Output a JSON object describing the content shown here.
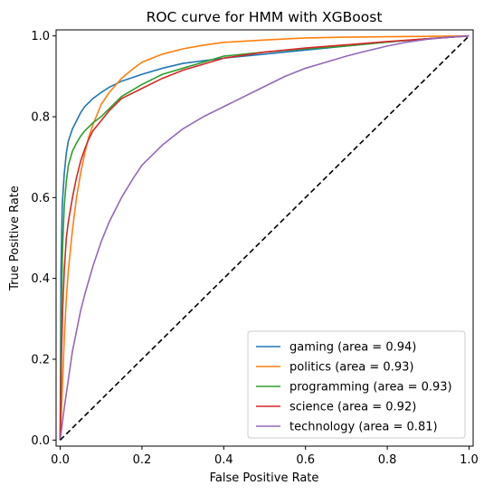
{
  "chart_data": {
    "type": "line",
    "title": "ROC curve for HMM with XGBoost",
    "xlabel": "False Positive Rate",
    "ylabel": "True Positive Rate",
    "xlim": [
      -0.01,
      1.01
    ],
    "ylim": [
      -0.015,
      1.015
    ],
    "xticks": [
      0.0,
      0.2,
      0.4,
      0.6,
      0.8,
      1.0
    ],
    "yticks": [
      0.0,
      0.2,
      0.4,
      0.6,
      0.8,
      1.0
    ],
    "xtick_labels": [
      "0.0",
      "0.2",
      "0.4",
      "0.6",
      "0.8",
      "1.0"
    ],
    "ytick_labels": [
      "0.0",
      "0.2",
      "0.4",
      "0.6",
      "0.8",
      "1.0"
    ],
    "grid": false,
    "legend_position": "lower-right",
    "diagonal": {
      "x": [
        0,
        1
      ],
      "y": [
        0,
        1
      ],
      "color": "#000000",
      "style": "dashed"
    },
    "series": [
      {
        "name": "gaming (area = 0.94)",
        "color": "#1f77b4",
        "x": [
          0,
          0.002,
          0.005,
          0.01,
          0.015,
          0.02,
          0.03,
          0.04,
          0.05,
          0.06,
          0.08,
          0.1,
          0.12,
          0.15,
          0.18,
          0.2,
          0.25,
          0.3,
          0.4,
          0.5,
          0.6,
          0.7,
          0.8,
          0.9,
          1.0
        ],
        "y": [
          0,
          0.42,
          0.58,
          0.66,
          0.71,
          0.74,
          0.77,
          0.79,
          0.81,
          0.825,
          0.845,
          0.86,
          0.873,
          0.888,
          0.898,
          0.905,
          0.92,
          0.932,
          0.945,
          0.955,
          0.965,
          0.975,
          0.985,
          0.993,
          1.0
        ]
      },
      {
        "name": "politics (area = 0.93)",
        "color": "#ff7f0e",
        "x": [
          0,
          0.005,
          0.01,
          0.015,
          0.02,
          0.03,
          0.04,
          0.05,
          0.06,
          0.07,
          0.08,
          0.1,
          0.12,
          0.15,
          0.18,
          0.2,
          0.25,
          0.3,
          0.35,
          0.4,
          0.5,
          0.6,
          0.7,
          0.8,
          0.9,
          1.0
        ],
        "y": [
          0,
          0.12,
          0.25,
          0.35,
          0.42,
          0.52,
          0.6,
          0.66,
          0.71,
          0.75,
          0.78,
          0.83,
          0.86,
          0.895,
          0.92,
          0.935,
          0.955,
          0.968,
          0.977,
          0.984,
          0.99,
          0.995,
          0.997,
          0.998,
          0.999,
          1.0
        ]
      },
      {
        "name": "programming (area = 0.93)",
        "color": "#2ca02c",
        "x": [
          0,
          0.003,
          0.006,
          0.01,
          0.015,
          0.02,
          0.03,
          0.04,
          0.05,
          0.06,
          0.08,
          0.1,
          0.12,
          0.15,
          0.2,
          0.25,
          0.3,
          0.4,
          0.5,
          0.6,
          0.7,
          0.8,
          0.9,
          1.0
        ],
        "y": [
          0,
          0.33,
          0.48,
          0.58,
          0.64,
          0.68,
          0.715,
          0.735,
          0.752,
          0.765,
          0.785,
          0.8,
          0.82,
          0.85,
          0.88,
          0.905,
          0.92,
          0.95,
          0.96,
          0.968,
          0.975,
          0.985,
          0.993,
          1.0
        ]
      },
      {
        "name": "science (area = 0.92)",
        "color": "#d62728",
        "x": [
          0,
          0.003,
          0.006,
          0.01,
          0.015,
          0.02,
          0.03,
          0.04,
          0.05,
          0.06,
          0.07,
          0.08,
          0.1,
          0.12,
          0.15,
          0.2,
          0.25,
          0.3,
          0.4,
          0.5,
          0.6,
          0.7,
          0.8,
          0.9,
          1.0
        ],
        "y": [
          0,
          0.2,
          0.32,
          0.42,
          0.5,
          0.54,
          0.6,
          0.65,
          0.69,
          0.72,
          0.745,
          0.765,
          0.79,
          0.815,
          0.845,
          0.87,
          0.895,
          0.915,
          0.945,
          0.96,
          0.97,
          0.978,
          0.986,
          0.993,
          1.0
        ]
      },
      {
        "name": "technology (area = 0.81)",
        "color": "#9467bd",
        "x": [
          0,
          0.005,
          0.01,
          0.02,
          0.03,
          0.04,
          0.05,
          0.06,
          0.08,
          0.1,
          0.12,
          0.15,
          0.18,
          0.2,
          0.25,
          0.3,
          0.35,
          0.4,
          0.45,
          0.5,
          0.55,
          0.6,
          0.65,
          0.7,
          0.75,
          0.8,
          0.85,
          0.9,
          0.95,
          1.0
        ],
        "y": [
          0,
          0.04,
          0.08,
          0.15,
          0.22,
          0.27,
          0.32,
          0.36,
          0.43,
          0.49,
          0.54,
          0.6,
          0.65,
          0.68,
          0.73,
          0.77,
          0.8,
          0.825,
          0.85,
          0.875,
          0.9,
          0.92,
          0.935,
          0.95,
          0.963,
          0.975,
          0.985,
          0.992,
          0.997,
          1.0
        ]
      }
    ]
  }
}
